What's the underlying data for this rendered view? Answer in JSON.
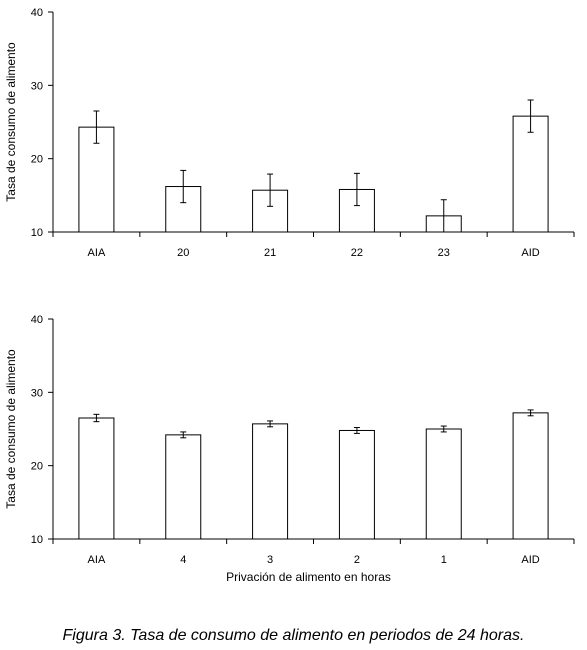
{
  "caption": "Figura 3. Tasa de consumo de alimento en periodos de 24 horas.",
  "chart_data": [
    {
      "type": "bar",
      "ylabel": "Tasa de consumo de alimento",
      "xlabel": "",
      "ylim": [
        10,
        40
      ],
      "yticks": [
        10,
        20,
        30,
        40
      ],
      "categories": [
        "AIA",
        "20",
        "21",
        "22",
        "23",
        "AID"
      ],
      "values": [
        24.3,
        16.2,
        15.7,
        15.8,
        12.2,
        25.8
      ],
      "errors": [
        2.2,
        2.2,
        2.2,
        2.2,
        2.2,
        2.2
      ],
      "grid": false,
      "bar_color": "#ffffff",
      "edge_color": "#000000"
    },
    {
      "type": "bar",
      "ylabel": "Tasa de consumo de alimento",
      "xlabel": "Privación de alimento en horas",
      "ylim": [
        10,
        40
      ],
      "yticks": [
        10,
        20,
        30,
        40
      ],
      "categories": [
        "AIA",
        "4",
        "3",
        "2",
        "1",
        "AID"
      ],
      "values": [
        26.5,
        24.2,
        25.7,
        24.8,
        25.0,
        27.2
      ],
      "errors": [
        0.5,
        0.4,
        0.4,
        0.4,
        0.4,
        0.4
      ],
      "grid": false,
      "bar_color": "#ffffff",
      "edge_color": "#000000"
    }
  ]
}
